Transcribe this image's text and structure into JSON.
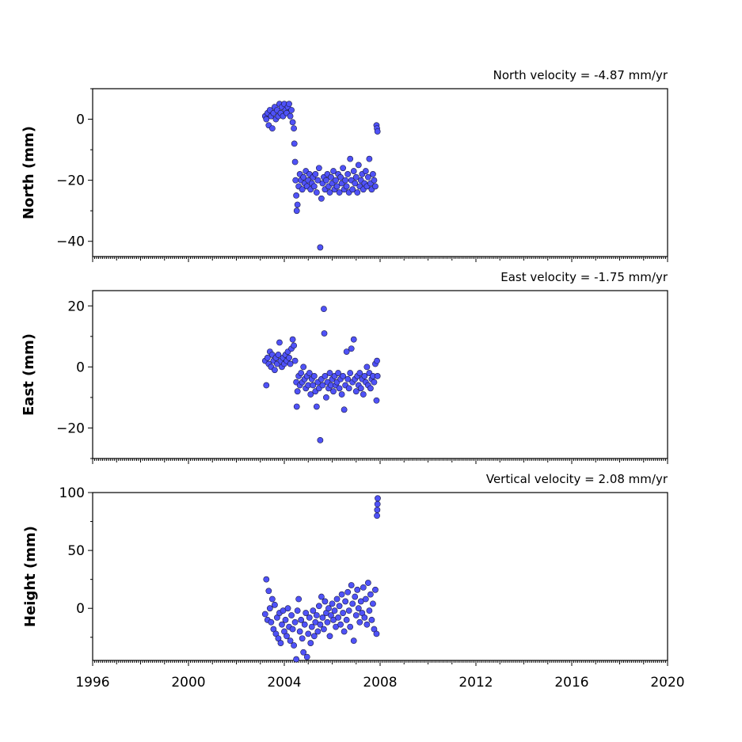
{
  "chart_data": [
    {
      "type": "scatter",
      "ylabel": "North (mm)",
      "annotation": "North velocity = -4.87 mm/yr",
      "ylim": [
        -45,
        10
      ],
      "yticks": [
        0,
        -20,
        -40
      ],
      "ytick_labels": [
        "0",
        "−20",
        "−40"
      ],
      "xlim": [
        1996,
        2020
      ],
      "grid": false,
      "color": "#4f52f7",
      "points": [
        [
          2003.2,
          1
        ],
        [
          2003.25,
          0
        ],
        [
          2003.3,
          2
        ],
        [
          2003.35,
          -2
        ],
        [
          2003.4,
          3
        ],
        [
          2003.45,
          1
        ],
        [
          2003.5,
          -3
        ],
        [
          2003.55,
          2
        ],
        [
          2003.6,
          4
        ],
        [
          2003.65,
          0
        ],
        [
          2003.7,
          3
        ],
        [
          2003.75,
          1
        ],
        [
          2003.8,
          5
        ],
        [
          2003.85,
          2
        ],
        [
          2003.9,
          4
        ],
        [
          2003.95,
          1
        ],
        [
          2004.0,
          5
        ],
        [
          2004.05,
          3
        ],
        [
          2004.1,
          2
        ],
        [
          2004.15,
          4
        ],
        [
          2004.2,
          5
        ],
        [
          2004.25,
          1
        ],
        [
          2004.3,
          3
        ],
        [
          2004.35,
          -1
        ],
        [
          2004.4,
          -3
        ],
        [
          2004.42,
          -8
        ],
        [
          2004.45,
          -14
        ],
        [
          2004.47,
          -20
        ],
        [
          2004.5,
          -25
        ],
        [
          2004.52,
          -30
        ],
        [
          2004.55,
          -28
        ],
        [
          2004.6,
          -22
        ],
        [
          2004.65,
          -18
        ],
        [
          2004.7,
          -20
        ],
        [
          2004.75,
          -23
        ],
        [
          2004.8,
          -19
        ],
        [
          2004.85,
          -21
        ],
        [
          2004.9,
          -17
        ],
        [
          2004.95,
          -22
        ],
        [
          2005.0,
          -20
        ],
        [
          2005.05,
          -18
        ],
        [
          2005.1,
          -23
        ],
        [
          2005.15,
          -21
        ],
        [
          2005.2,
          -19
        ],
        [
          2005.25,
          -22
        ],
        [
          2005.3,
          -18
        ],
        [
          2005.35,
          -24
        ],
        [
          2005.4,
          -20
        ],
        [
          2005.45,
          -16
        ],
        [
          2005.5,
          -42
        ],
        [
          2005.55,
          -26
        ],
        [
          2005.6,
          -21
        ],
        [
          2005.65,
          -19
        ],
        [
          2005.7,
          -23
        ],
        [
          2005.75,
          -20
        ],
        [
          2005.8,
          -18
        ],
        [
          2005.85,
          -22
        ],
        [
          2005.9,
          -24
        ],
        [
          2005.95,
          -19
        ],
        [
          2006.0,
          -21
        ],
        [
          2006.05,
          -17
        ],
        [
          2006.1,
          -23
        ],
        [
          2006.15,
          -20
        ],
        [
          2006.2,
          -22
        ],
        [
          2006.25,
          -18
        ],
        [
          2006.3,
          -24
        ],
        [
          2006.35,
          -19
        ],
        [
          2006.4,
          -21
        ],
        [
          2006.45,
          -16
        ],
        [
          2006.5,
          -23
        ],
        [
          2006.55,
          -20
        ],
        [
          2006.6,
          -22
        ],
        [
          2006.65,
          -18
        ],
        [
          2006.7,
          -24
        ],
        [
          2006.75,
          -13
        ],
        [
          2006.8,
          -20
        ],
        [
          2006.85,
          -23
        ],
        [
          2006.9,
          -17
        ],
        [
          2006.95,
          -21
        ],
        [
          2007.0,
          -19
        ],
        [
          2007.05,
          -24
        ],
        [
          2007.1,
          -15
        ],
        [
          2007.15,
          -22
        ],
        [
          2007.2,
          -20
        ],
        [
          2007.25,
          -18
        ],
        [
          2007.3,
          -23
        ],
        [
          2007.35,
          -21
        ],
        [
          2007.4,
          -17
        ],
        [
          2007.45,
          -22
        ],
        [
          2007.5,
          -19
        ],
        [
          2007.55,
          -13
        ],
        [
          2007.6,
          -21
        ],
        [
          2007.65,
          -23
        ],
        [
          2007.7,
          -18
        ],
        [
          2007.75,
          -20
        ],
        [
          2007.8,
          -22
        ],
        [
          2007.85,
          -2
        ],
        [
          2007.87,
          -3
        ],
        [
          2007.89,
          -4
        ]
      ]
    },
    {
      "type": "scatter",
      "ylabel": "East (mm)",
      "annotation": "East velocity = -1.75 mm/yr",
      "ylim": [
        -30,
        25
      ],
      "yticks": [
        20,
        0,
        -20
      ],
      "ytick_labels": [
        "20",
        "0",
        "−20"
      ],
      "xlim": [
        1996,
        2020
      ],
      "grid": false,
      "color": "#4f52f7",
      "points": [
        [
          2003.2,
          2
        ],
        [
          2003.25,
          -6
        ],
        [
          2003.3,
          3
        ],
        [
          2003.35,
          1
        ],
        [
          2003.4,
          5
        ],
        [
          2003.45,
          0
        ],
        [
          2003.5,
          4
        ],
        [
          2003.55,
          2
        ],
        [
          2003.6,
          -1
        ],
        [
          2003.65,
          3
        ],
        [
          2003.7,
          1
        ],
        [
          2003.75,
          4
        ],
        [
          2003.8,
          8
        ],
        [
          2003.85,
          2
        ],
        [
          2003.9,
          0
        ],
        [
          2003.95,
          3
        ],
        [
          2004.0,
          1
        ],
        [
          2004.05,
          4
        ],
        [
          2004.1,
          2
        ],
        [
          2004.15,
          5
        ],
        [
          2004.2,
          3
        ],
        [
          2004.25,
          1
        ],
        [
          2004.3,
          6
        ],
        [
          2004.35,
          9
        ],
        [
          2004.4,
          7
        ],
        [
          2004.45,
          2
        ],
        [
          2004.5,
          -5
        ],
        [
          2004.52,
          -13
        ],
        [
          2004.55,
          -8
        ],
        [
          2004.6,
          -3
        ],
        [
          2004.65,
          -6
        ],
        [
          2004.7,
          -2
        ],
        [
          2004.75,
          -5
        ],
        [
          2004.8,
          0
        ],
        [
          2004.85,
          -4
        ],
        [
          2004.9,
          -7
        ],
        [
          2004.95,
          -3
        ],
        [
          2005.0,
          -6
        ],
        [
          2005.05,
          -2
        ],
        [
          2005.1,
          -9
        ],
        [
          2005.15,
          -4
        ],
        [
          2005.2,
          -6
        ],
        [
          2005.25,
          -3
        ],
        [
          2005.3,
          -8
        ],
        [
          2005.35,
          -13
        ],
        [
          2005.4,
          -5
        ],
        [
          2005.45,
          -7
        ],
        [
          2005.5,
          -24
        ],
        [
          2005.55,
          -4
        ],
        [
          2005.6,
          -6
        ],
        [
          2005.65,
          19
        ],
        [
          2005.67,
          11
        ],
        [
          2005.7,
          -3
        ],
        [
          2005.75,
          -10
        ],
        [
          2005.8,
          -5
        ],
        [
          2005.85,
          -7
        ],
        [
          2005.9,
          -2
        ],
        [
          2005.95,
          -6
        ],
        [
          2006.0,
          -4
        ],
        [
          2006.05,
          -8
        ],
        [
          2006.1,
          -3
        ],
        [
          2006.15,
          -6
        ],
        [
          2006.2,
          -5
        ],
        [
          2006.25,
          -2
        ],
        [
          2006.3,
          -7
        ],
        [
          2006.35,
          -4
        ],
        [
          2006.4,
          -9
        ],
        [
          2006.45,
          -3
        ],
        [
          2006.5,
          -14
        ],
        [
          2006.55,
          -6
        ],
        [
          2006.6,
          5
        ],
        [
          2006.65,
          -4
        ],
        [
          2006.7,
          -7
        ],
        [
          2006.75,
          -2
        ],
        [
          2006.8,
          6
        ],
        [
          2006.85,
          -5
        ],
        [
          2006.9,
          9
        ],
        [
          2006.95,
          -4
        ],
        [
          2007.0,
          -8
        ],
        [
          2007.05,
          -3
        ],
        [
          2007.1,
          -6
        ],
        [
          2007.15,
          -2
        ],
        [
          2007.2,
          -7
        ],
        [
          2007.25,
          -4
        ],
        [
          2007.3,
          -9
        ],
        [
          2007.35,
          -3
        ],
        [
          2007.4,
          -5
        ],
        [
          2007.45,
          0
        ],
        [
          2007.5,
          -6
        ],
        [
          2007.55,
          -2
        ],
        [
          2007.6,
          -7
        ],
        [
          2007.65,
          -4
        ],
        [
          2007.7,
          -3
        ],
        [
          2007.75,
          -5
        ],
        [
          2007.8,
          1
        ],
        [
          2007.85,
          -11
        ],
        [
          2007.87,
          2
        ],
        [
          2007.89,
          -3
        ]
      ]
    },
    {
      "type": "scatter",
      "ylabel": "Height (mm)",
      "annotation": "Vertical velocity = 2.08 mm/yr",
      "ylim": [
        -45,
        100
      ],
      "yticks": [
        100,
        50,
        0
      ],
      "ytick_labels": [
        "100",
        "50",
        "0"
      ],
      "xticks": [
        1996,
        2000,
        2004,
        2008,
        2012,
        2016,
        2020
      ],
      "xtick_labels": [
        "1996",
        "2000",
        "2004",
        "2008",
        "2012",
        "2016",
        "2020"
      ],
      "xlim": [
        1996,
        2020
      ],
      "grid": false,
      "color": "#4f52f7",
      "points": [
        [
          2003.2,
          -5
        ],
        [
          2003.25,
          25
        ],
        [
          2003.3,
          -10
        ],
        [
          2003.35,
          15
        ],
        [
          2003.4,
          0
        ],
        [
          2003.45,
          -12
        ],
        [
          2003.5,
          8
        ],
        [
          2003.55,
          -18
        ],
        [
          2003.6,
          3
        ],
        [
          2003.65,
          -22
        ],
        [
          2003.7,
          -8
        ],
        [
          2003.75,
          -26
        ],
        [
          2003.8,
          -4
        ],
        [
          2003.85,
          -30
        ],
        [
          2003.9,
          -14
        ],
        [
          2003.95,
          -2
        ],
        [
          2004.0,
          -20
        ],
        [
          2004.05,
          -10
        ],
        [
          2004.1,
          -24
        ],
        [
          2004.15,
          0
        ],
        [
          2004.2,
          -16
        ],
        [
          2004.25,
          -28
        ],
        [
          2004.3,
          -6
        ],
        [
          2004.35,
          -18
        ],
        [
          2004.4,
          -32
        ],
        [
          2004.45,
          -12
        ],
        [
          2004.5,
          -44
        ],
        [
          2004.55,
          -2
        ],
        [
          2004.6,
          8
        ],
        [
          2004.65,
          -20
        ],
        [
          2004.7,
          -10
        ],
        [
          2004.75,
          -26
        ],
        [
          2004.8,
          -38
        ],
        [
          2004.85,
          -14
        ],
        [
          2004.9,
          -4
        ],
        [
          2004.95,
          -42
        ],
        [
          2005.0,
          -22
        ],
        [
          2005.05,
          -8
        ],
        [
          2005.1,
          -30
        ],
        [
          2005.15,
          -16
        ],
        [
          2005.2,
          -2
        ],
        [
          2005.25,
          -24
        ],
        [
          2005.3,
          -12
        ],
        [
          2005.35,
          -6
        ],
        [
          2005.4,
          -20
        ],
        [
          2005.45,
          2
        ],
        [
          2005.5,
          -14
        ],
        [
          2005.55,
          10
        ],
        [
          2005.6,
          -8
        ],
        [
          2005.65,
          -18
        ],
        [
          2005.7,
          6
        ],
        [
          2005.75,
          -4
        ],
        [
          2005.8,
          -12
        ],
        [
          2005.85,
          0
        ],
        [
          2005.9,
          -24
        ],
        [
          2005.95,
          -6
        ],
        [
          2006.0,
          4
        ],
        [
          2006.05,
          -10
        ],
        [
          2006.1,
          -2
        ],
        [
          2006.15,
          -16
        ],
        [
          2006.2,
          8
        ],
        [
          2006.25,
          -8
        ],
        [
          2006.3,
          2
        ],
        [
          2006.35,
          -14
        ],
        [
          2006.4,
          12
        ],
        [
          2006.45,
          -4
        ],
        [
          2006.5,
          -20
        ],
        [
          2006.55,
          6
        ],
        [
          2006.6,
          -10
        ],
        [
          2006.65,
          14
        ],
        [
          2006.7,
          -2
        ],
        [
          2006.75,
          -16
        ],
        [
          2006.8,
          20
        ],
        [
          2006.85,
          4
        ],
        [
          2006.9,
          -28
        ],
        [
          2006.95,
          10
        ],
        [
          2007.0,
          -6
        ],
        [
          2007.05,
          16
        ],
        [
          2007.1,
          0
        ],
        [
          2007.15,
          -12
        ],
        [
          2007.2,
          6
        ],
        [
          2007.25,
          -4
        ],
        [
          2007.3,
          18
        ],
        [
          2007.35,
          -8
        ],
        [
          2007.4,
          8
        ],
        [
          2007.45,
          -14
        ],
        [
          2007.5,
          22
        ],
        [
          2007.55,
          -2
        ],
        [
          2007.6,
          12
        ],
        [
          2007.65,
          -10
        ],
        [
          2007.7,
          4
        ],
        [
          2007.75,
          -18
        ],
        [
          2007.8,
          16
        ],
        [
          2007.85,
          -22
        ],
        [
          2007.87,
          80
        ],
        [
          2007.88,
          85
        ],
        [
          2007.89,
          90
        ],
        [
          2007.9,
          95
        ]
      ]
    }
  ]
}
